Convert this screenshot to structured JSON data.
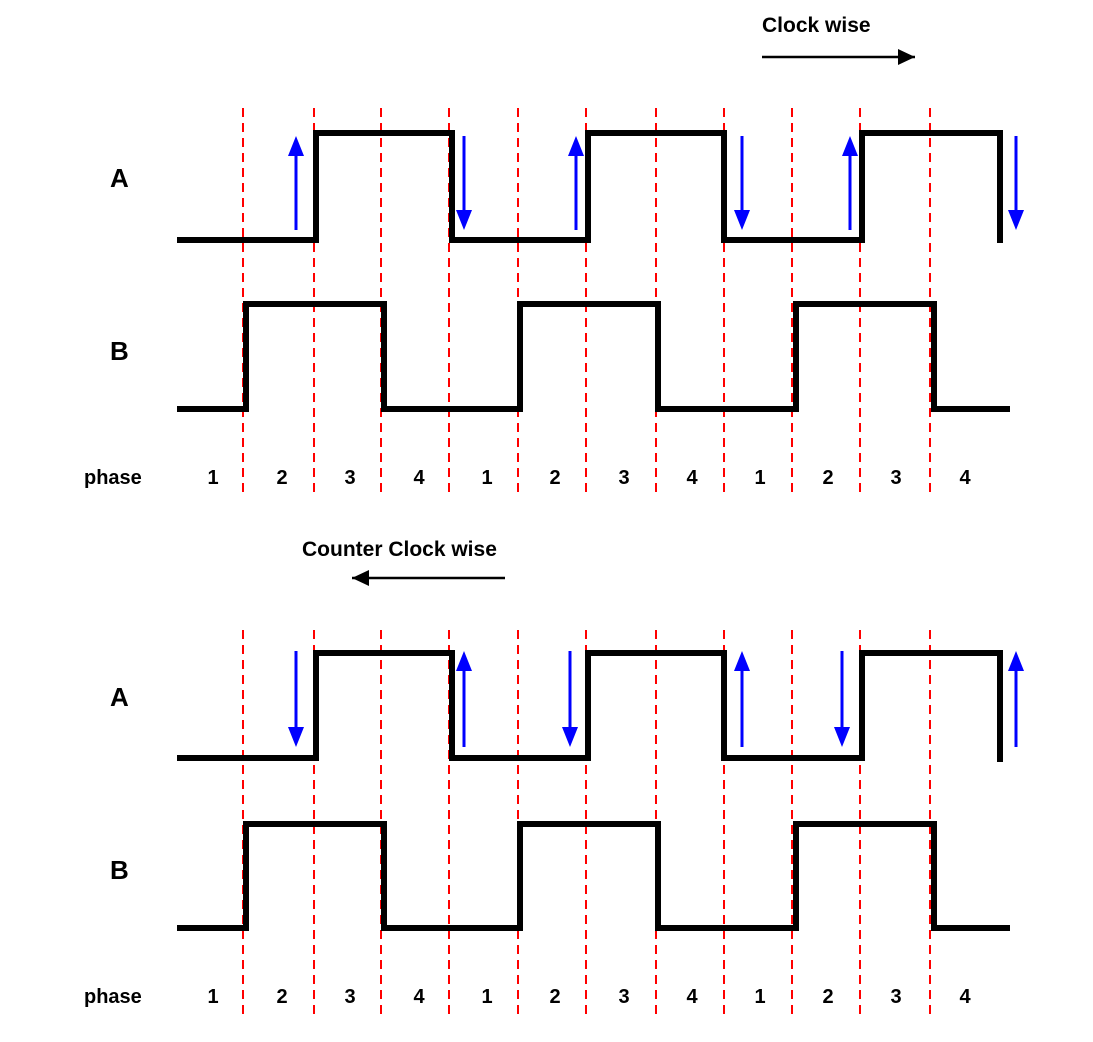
{
  "panels": [
    {
      "id": "cw",
      "direction_label": "Clock wise",
      "direction": "right",
      "signal_a_label": "A",
      "signal_b_label": "B",
      "phase_label": "phase",
      "phases": [
        "1",
        "2",
        "3",
        "4",
        "1",
        "2",
        "3",
        "4",
        "1",
        "2",
        "3",
        "4"
      ],
      "edge_arrows": [
        "up",
        "down",
        "up",
        "down",
        "up",
        "down"
      ]
    },
    {
      "id": "ccw",
      "direction_label": "Counter Clock wise",
      "direction": "left",
      "signal_a_label": "A",
      "signal_b_label": "B",
      "phase_label": "phase",
      "phases": [
        "1",
        "2",
        "3",
        "4",
        "1",
        "2",
        "3",
        "4",
        "1",
        "2",
        "3",
        "4"
      ],
      "edge_arrows": [
        "down",
        "up",
        "down",
        "up",
        "down",
        "up"
      ]
    }
  ],
  "colors": {
    "waveform": "#000000",
    "phase_divider": "#ff0000",
    "edge_arrow": "#0000ff"
  }
}
